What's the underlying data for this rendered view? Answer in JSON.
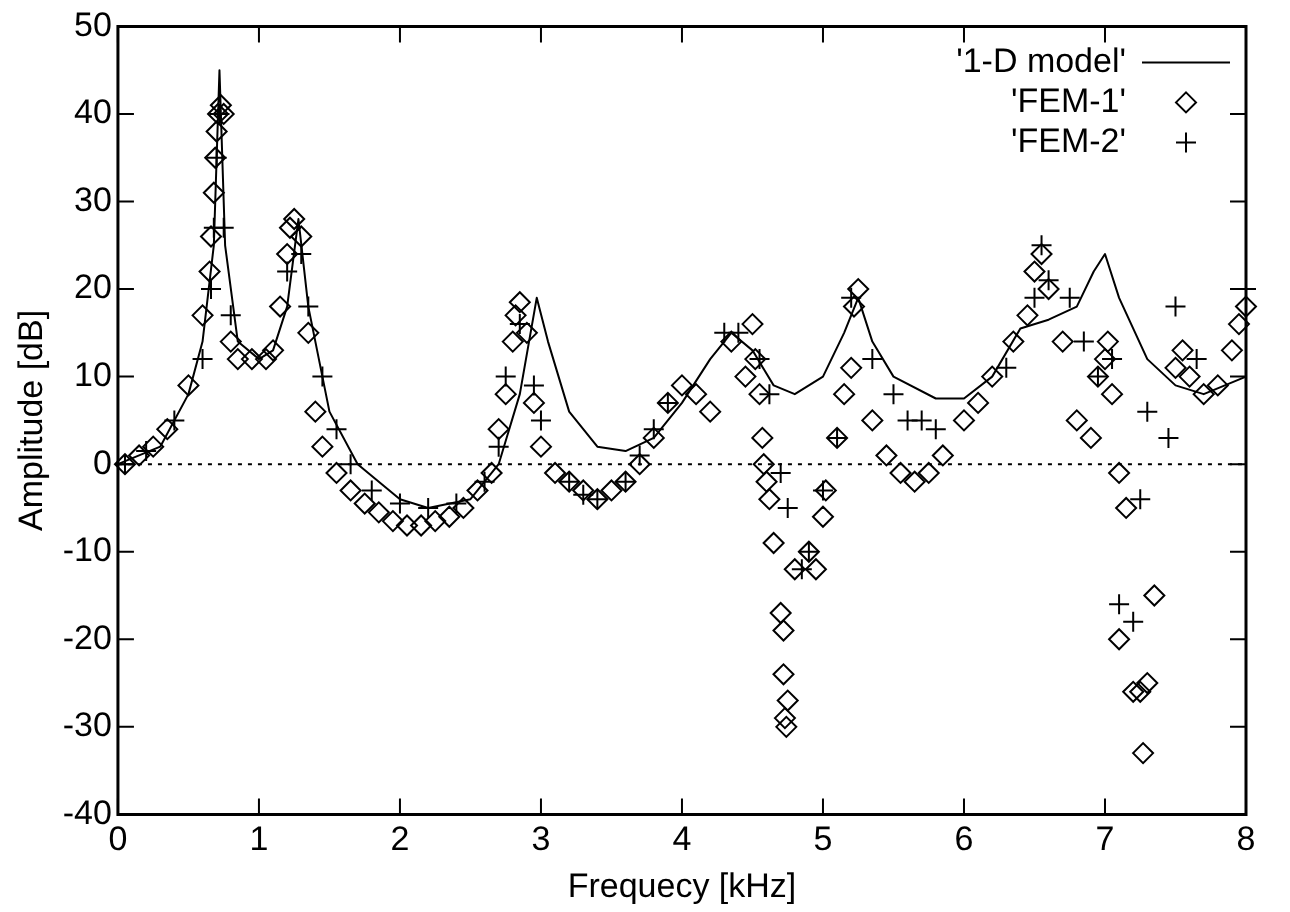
{
  "chart_data": {
    "type": "scatter",
    "xlabel": "Frequecy [kHz]",
    "ylabel": "Amplitude [dB]",
    "xlim": [
      0,
      8
    ],
    "xticks": [
      0,
      1,
      2,
      3,
      4,
      5,
      6,
      7,
      8
    ],
    "ylim": [
      -40,
      50
    ],
    "yticks": [
      -40,
      -30,
      -20,
      -10,
      0,
      10,
      20,
      30,
      40,
      50
    ],
    "grid": false,
    "legend": "top right",
    "ref_lines": [
      {
        "axis": "y",
        "value": 0,
        "line_style": "dotted",
        "color": "#000000"
      }
    ],
    "series": [
      {
        "name": "'1-D model'",
        "type": "line",
        "marker": "none",
        "color": "#000000",
        "x": [
          0,
          0.3,
          0.5,
          0.6,
          0.68,
          0.72,
          0.76,
          0.85,
          1.0,
          1.1,
          1.2,
          1.28,
          1.35,
          1.5,
          1.7,
          2.0,
          2.2,
          2.5,
          2.7,
          2.85,
          2.97,
          3.05,
          3.2,
          3.4,
          3.6,
          3.8,
          4.0,
          4.2,
          4.35,
          4.5,
          4.65,
          4.8,
          5.0,
          5.15,
          5.25,
          5.35,
          5.5,
          5.8,
          6.0,
          6.2,
          6.4,
          6.6,
          6.8,
          6.92,
          7.0,
          7.1,
          7.3,
          7.5,
          7.7,
          8.0
        ],
        "values": [
          0,
          2,
          8,
          14,
          25,
          45,
          25,
          14,
          12,
          13,
          18,
          28,
          18,
          6,
          0,
          -4,
          -5,
          -4,
          0,
          8,
          19,
          14,
          6,
          2,
          1.5,
          3,
          7,
          12,
          15,
          13,
          9,
          8,
          10,
          15,
          19,
          14,
          10,
          7.5,
          7.5,
          10,
          15.5,
          16.5,
          18,
          22,
          24,
          19,
          12,
          9,
          8,
          10
        ]
      },
      {
        "name": "'FEM-1'",
        "type": "scatter",
        "marker": "diamond",
        "color": "#000000",
        "x": [
          0.05,
          0.15,
          0.25,
          0.35,
          0.5,
          0.6,
          0.65,
          0.66,
          0.68,
          0.69,
          0.7,
          0.71,
          0.73,
          0.75,
          0.8,
          0.85,
          0.95,
          1.05,
          1.1,
          1.15,
          1.2,
          1.22,
          1.25,
          1.3,
          1.35,
          1.4,
          1.45,
          1.55,
          1.65,
          1.75,
          1.85,
          1.95,
          2.05,
          2.15,
          2.25,
          2.35,
          2.45,
          2.55,
          2.65,
          2.7,
          2.75,
          2.8,
          2.82,
          2.85,
          2.9,
          2.95,
          3.0,
          3.1,
          3.2,
          3.3,
          3.4,
          3.5,
          3.6,
          3.7,
          3.8,
          3.9,
          4.0,
          4.1,
          4.2,
          4.35,
          4.45,
          4.5,
          4.52,
          4.55,
          4.57,
          4.58,
          4.6,
          4.62,
          4.65,
          4.7,
          4.72,
          4.72,
          4.73,
          4.74,
          4.75,
          4.8,
          4.9,
          4.95,
          5.0,
          5.02,
          5.1,
          5.15,
          5.2,
          5.22,
          5.25,
          5.35,
          5.45,
          5.55,
          5.65,
          5.75,
          5.85,
          6.0,
          6.1,
          6.2,
          6.35,
          6.45,
          6.5,
          6.55,
          6.6,
          6.7,
          6.8,
          6.9,
          6.95,
          7.0,
          7.02,
          7.05,
          7.1,
          7.15,
          7.1,
          7.2,
          7.25,
          7.3,
          7.27,
          7.35,
          7.5,
          7.55,
          7.6,
          7.7,
          7.8,
          7.9,
          7.95,
          8.0
        ],
        "values": [
          0,
          1,
          2,
          4,
          9,
          17,
          22,
          26,
          31,
          35,
          38,
          40,
          41,
          40,
          14,
          12,
          12,
          12,
          13,
          18,
          24,
          27,
          28,
          26,
          15,
          6,
          2,
          -1,
          -3,
          -4.5,
          -5.5,
          -6.5,
          -7,
          -7,
          -6.5,
          -6,
          -5,
          -3,
          -1,
          4,
          8,
          14,
          17,
          18.5,
          15,
          7,
          2,
          -1,
          -2,
          -3,
          -4,
          -3,
          -2,
          0,
          3,
          7,
          9,
          8,
          6,
          14,
          10,
          16,
          12,
          8,
          3,
          0,
          -2,
          -4,
          -9,
          -17,
          -19,
          -24,
          -29,
          -30,
          -27,
          -12,
          -10,
          -12,
          -6,
          -3,
          3,
          8,
          11,
          18,
          20,
          5,
          1,
          -1,
          -2,
          -1,
          1,
          5,
          7,
          10,
          14,
          17,
          22,
          24,
          20,
          14,
          5,
          3,
          10,
          12,
          14,
          8,
          -1,
          -5,
          -20,
          -26,
          -26,
          -25,
          -33,
          -15,
          11,
          13,
          10,
          8,
          9,
          13,
          16,
          18
        ]
      },
      {
        "name": "'FEM-2'",
        "type": "scatter",
        "marker": "cross",
        "color": "#000000",
        "x": [
          0.05,
          0.2,
          0.4,
          0.6,
          0.66,
          0.68,
          0.7,
          0.72,
          0.75,
          0.8,
          1.2,
          1.3,
          1.35,
          1.45,
          1.55,
          1.65,
          1.8,
          2.0,
          2.2,
          2.4,
          2.6,
          2.7,
          2.75,
          2.85,
          2.95,
          3.0,
          3.2,
          3.3,
          3.4,
          3.6,
          3.7,
          3.8,
          3.9,
          4.3,
          4.4,
          4.55,
          4.62,
          4.7,
          4.75,
          4.85,
          4.9,
          5.0,
          5.1,
          5.2,
          5.35,
          5.5,
          5.6,
          5.7,
          5.8,
          6.3,
          6.5,
          6.55,
          6.6,
          6.75,
          6.85,
          6.95,
          7.05,
          7.1,
          7.2,
          7.25,
          7.3,
          7.45,
          7.5,
          7.65,
          8.0
        ],
        "values": [
          0,
          1.5,
          5,
          12,
          20,
          27,
          35,
          40,
          27,
          17,
          22,
          24,
          18,
          10,
          4,
          0,
          -3,
          -4.5,
          -5,
          -4.5,
          -2,
          2,
          10,
          16,
          9,
          5,
          -2,
          -3.5,
          -4,
          -2,
          1,
          4,
          7,
          15,
          15,
          12,
          8,
          -1,
          -5,
          -12,
          -10,
          -3,
          3,
          19,
          12,
          8,
          5,
          5,
          4,
          11,
          19,
          25,
          21,
          19,
          14,
          10,
          12,
          -16,
          -18,
          -4,
          6,
          3,
          18,
          12,
          20
        ]
      }
    ]
  }
}
